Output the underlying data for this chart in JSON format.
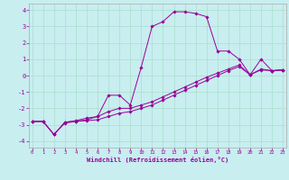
{
  "bg_color": "#c8eef0",
  "line_color": "#990099",
  "grid_color": "#aaddcc",
  "xlim": [
    -0.3,
    23.3
  ],
  "ylim": [
    -4.4,
    4.4
  ],
  "xticks": [
    0,
    1,
    2,
    3,
    4,
    5,
    6,
    7,
    8,
    9,
    10,
    11,
    12,
    13,
    14,
    15,
    16,
    17,
    18,
    19,
    20,
    21,
    22,
    23
  ],
  "yticks": [
    -4,
    -3,
    -2,
    -1,
    0,
    1,
    2,
    3,
    4
  ],
  "xlabel": "Windchill (Refroidissement éolien,°C)",
  "line1_x": [
    0,
    1,
    2,
    3,
    4,
    5,
    6,
    7,
    8,
    9,
    10,
    11,
    12,
    13,
    14,
    15,
    16,
    17,
    18,
    19,
    20,
    21,
    22,
    23
  ],
  "line1_y": [
    -2.8,
    -2.8,
    -3.6,
    -2.9,
    -2.8,
    -2.7,
    -2.5,
    -1.2,
    -1.2,
    -1.8,
    0.5,
    3.0,
    3.3,
    3.9,
    3.9,
    3.8,
    3.6,
    1.5,
    1.5,
    1.0,
    0.05,
    1.0,
    0.3,
    0.35
  ],
  "line2_x": [
    0,
    1,
    2,
    3,
    4,
    5,
    6,
    7,
    8,
    9,
    10,
    11,
    12,
    13,
    14,
    15,
    16,
    17,
    18,
    19,
    20,
    21,
    22,
    23
  ],
  "line2_y": [
    -2.8,
    -2.8,
    -3.6,
    -2.85,
    -2.75,
    -2.6,
    -2.5,
    -2.2,
    -2.0,
    -2.0,
    -1.8,
    -1.6,
    -1.3,
    -1.0,
    -0.7,
    -0.4,
    -0.1,
    0.15,
    0.4,
    0.65,
    0.05,
    0.4,
    0.3,
    0.35
  ],
  "line3_x": [
    0,
    1,
    2,
    3,
    4,
    5,
    6,
    7,
    8,
    9,
    10,
    11,
    12,
    13,
    14,
    15,
    16,
    17,
    18,
    19,
    20,
    21,
    22,
    23
  ],
  "line3_y": [
    -2.8,
    -2.8,
    -3.6,
    -2.85,
    -2.8,
    -2.75,
    -2.7,
    -2.5,
    -2.3,
    -2.2,
    -2.0,
    -1.8,
    -1.5,
    -1.2,
    -0.9,
    -0.6,
    -0.3,
    0.0,
    0.3,
    0.55,
    0.05,
    0.35,
    0.3,
    0.35
  ]
}
